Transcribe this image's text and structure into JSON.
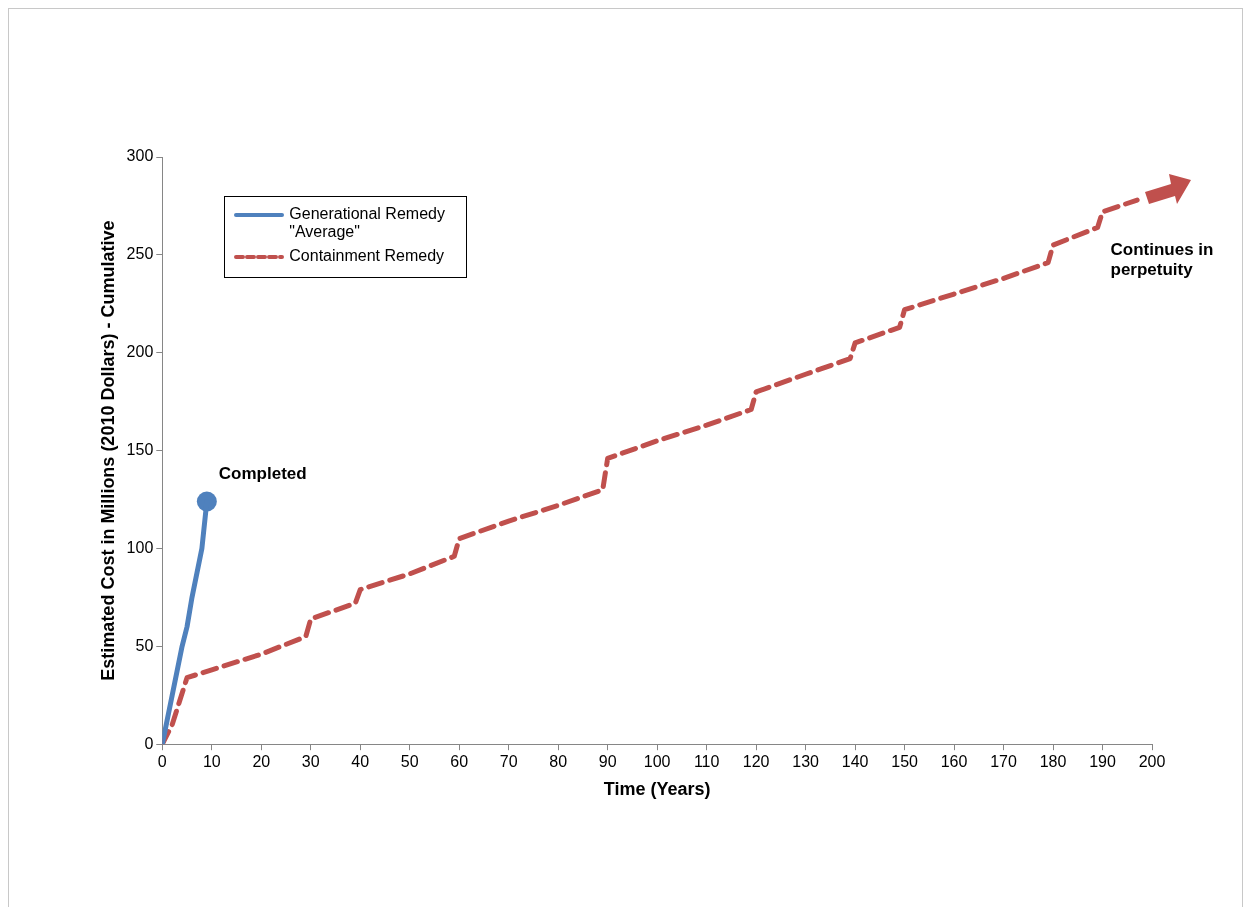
{
  "chart_data": {
    "type": "line",
    "xlabel": "Time (Years)",
    "ylabel": "Estimated Cost in Millions (2010 Dollars) - Cumulative",
    "xlim": [
      0,
      200
    ],
    "xticks": [
      0,
      10,
      20,
      30,
      40,
      50,
      60,
      70,
      80,
      90,
      100,
      110,
      120,
      130,
      140,
      150,
      160,
      170,
      180,
      190,
      200
    ],
    "ylim": [
      0,
      300
    ],
    "yticks": [
      0,
      50,
      100,
      150,
      200,
      250,
      300
    ],
    "grid": false,
    "legend": "top left",
    "series": [
      {
        "name": "Generational Remedy \"Average\"",
        "color": "#4f81bd",
        "line_style": "solid",
        "marker": "none",
        "x": [
          0,
          2,
          4,
          5,
          6,
          8,
          9
        ],
        "values": [
          0,
          25,
          50,
          60,
          75,
          100,
          124
        ]
      },
      {
        "type": "scatter",
        "color": "#4f81bd",
        "marker": "circle",
        "x": [
          9
        ],
        "values": [
          124
        ]
      },
      {
        "name": "Containment Remedy",
        "color": "#c0504d",
        "line_style": "dashed",
        "marker": "none",
        "x": [
          0,
          2,
          5,
          10,
          20,
          29,
          30,
          39,
          40,
          50,
          59,
          60,
          70,
          80,
          89,
          90,
          100,
          110,
          119,
          120,
          130,
          139,
          140,
          149,
          150,
          160,
          170,
          179,
          180,
          189,
          190,
          197
        ],
        "values": [
          0,
          10,
          34,
          38,
          46,
          55,
          64,
          72,
          79,
          87,
          96,
          105,
          114,
          122,
          130,
          146,
          155,
          163,
          171,
          180,
          189,
          197,
          205,
          213,
          222,
          230,
          238,
          246,
          255,
          264,
          272,
          278
        ]
      }
    ],
    "annotations": [
      {
        "text": "Completed",
        "x": 9,
        "y": 124
      },
      {
        "text": "Continues in perpetuity",
        "x": 190,
        "y": 262
      }
    ]
  }
}
